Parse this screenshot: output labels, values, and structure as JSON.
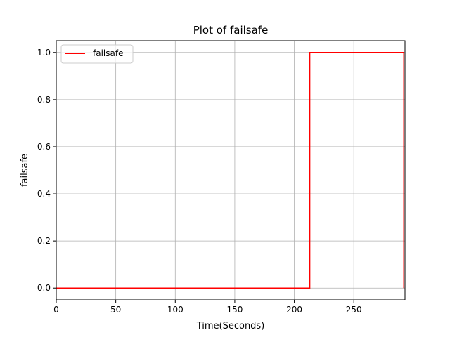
{
  "chart_data": {
    "type": "line",
    "title": "Plot of failsafe",
    "xlabel": "Time(Seconds)",
    "ylabel": "failsafe",
    "xlim": [
      0,
      293
    ],
    "ylim": [
      -0.05,
      1.05
    ],
    "xticks": [
      0,
      50,
      100,
      150,
      200,
      250
    ],
    "yticks": [
      0.0,
      0.2,
      0.4,
      0.6,
      0.8,
      1.0
    ],
    "xtick_labels": [
      "0",
      "50",
      "100",
      "150",
      "200",
      "250"
    ],
    "ytick_labels": [
      "0.0",
      "0.2",
      "0.4",
      "0.6",
      "0.8",
      "1.0"
    ],
    "grid": true,
    "legend_position": "top-left",
    "series": [
      {
        "name": "failsafe",
        "color": "#ff0000",
        "drawstyle": "steps",
        "x": [
          0,
          213,
          213,
          292,
          292
        ],
        "y": [
          0,
          0,
          1,
          1,
          0
        ]
      }
    ]
  }
}
